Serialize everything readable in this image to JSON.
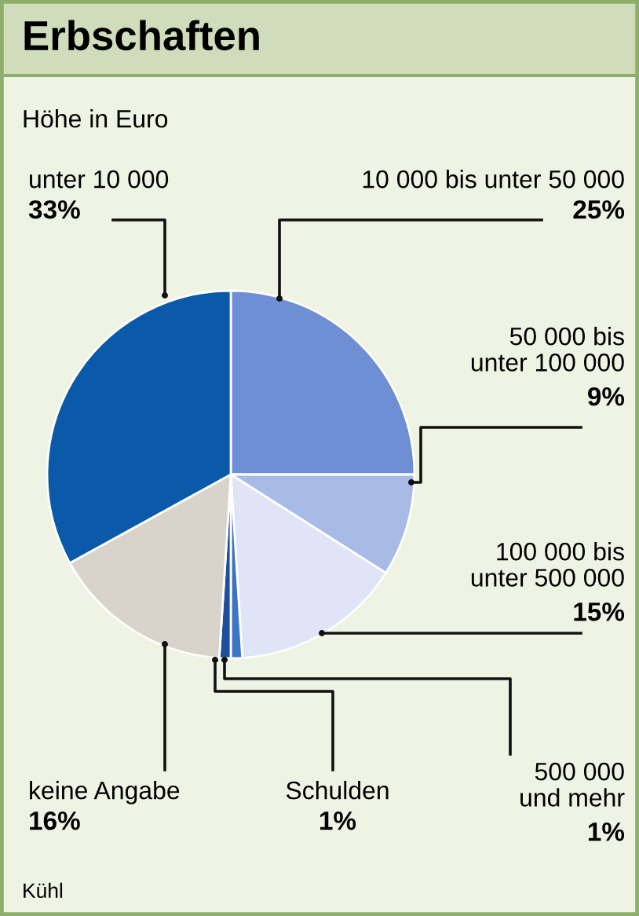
{
  "chart_data": {
    "type": "pie",
    "title": "Erbschaften",
    "subtitle": "Höhe in Euro",
    "categories": [
      "10 000 bis unter 50 000",
      "50 000 bis\nunter 100 000",
      "100 000 bis\nunter 500 000",
      "500 000\nund mehr",
      "Schulden",
      "keine Angabe",
      "unter 10 000"
    ],
    "values": [
      25,
      9,
      15,
      1,
      1,
      16,
      33
    ],
    "value_labels": [
      "25%",
      "9%",
      "15%",
      "1%",
      "1%",
      "16%",
      "33%"
    ],
    "colors": [
      "#6e8fd3",
      "#a7bbe6",
      "#dfe5f6",
      "#3f73c4",
      "#1d4f9c",
      "#d8d3cb",
      "#0b5aa9"
    ],
    "annotations": [
      "Kühl"
    ]
  }
}
